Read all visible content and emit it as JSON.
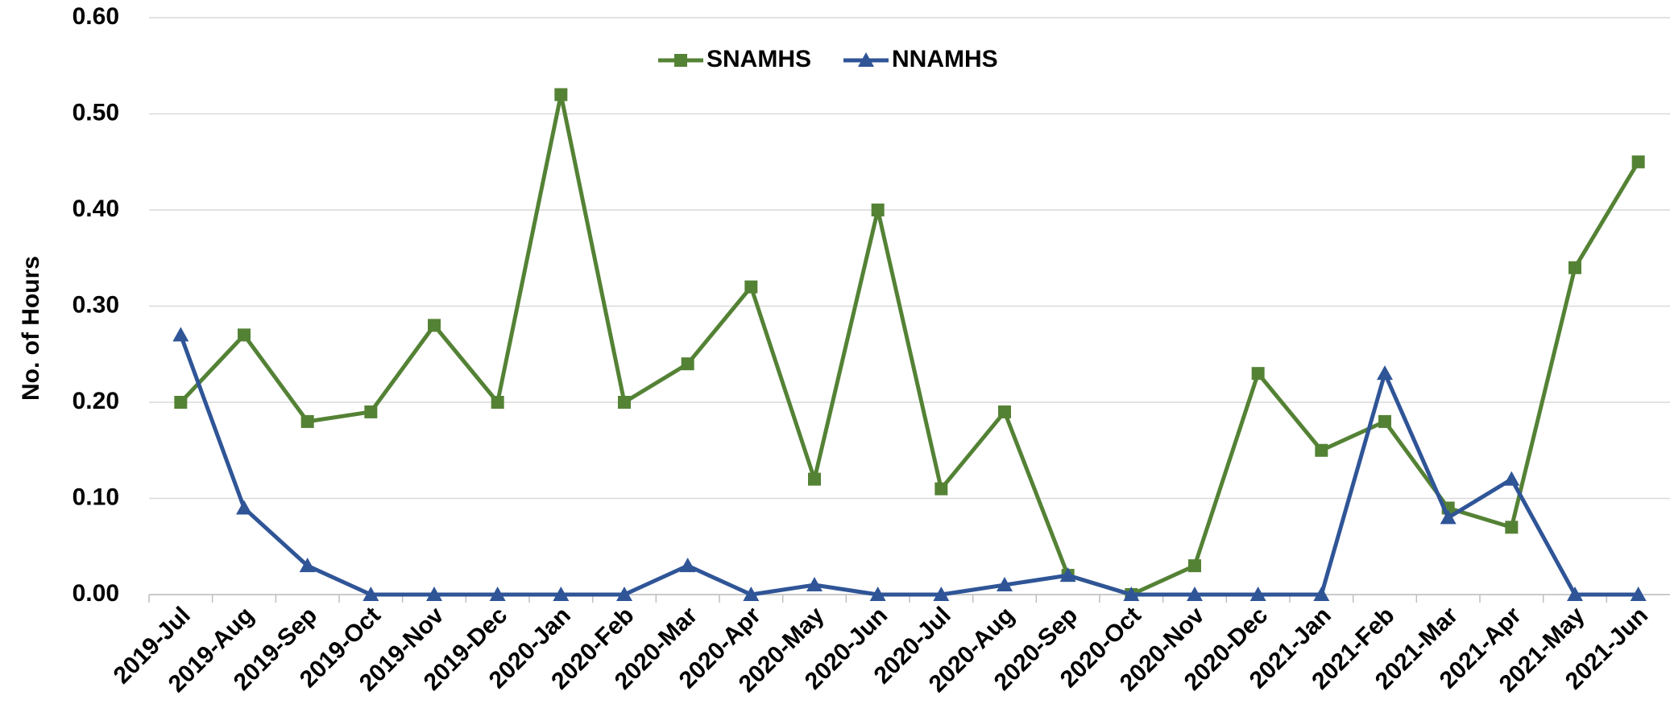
{
  "chart_data": {
    "type": "line",
    "y_label": "No. of Hours",
    "categories": [
      "2019-Jul",
      "2019-Aug",
      "2019-Sep",
      "2019-Oct",
      "2019-Nov",
      "2019-Dec",
      "2020-Jan",
      "2020-Feb",
      "2020-Mar",
      "2020-Apr",
      "2020-May",
      "2020-Jun",
      "2020-Jul",
      "2020-Aug",
      "2020-Sep",
      "2020-Oct",
      "2020-Nov",
      "2020-Dec",
      "2021-Jan",
      "2021-Feb",
      "2021-Mar",
      "2021-Apr",
      "2021-May",
      "2021-Jun"
    ],
    "series": [
      {
        "name": "SNAMHS",
        "color": "#548235",
        "marker": "square",
        "values": [
          0.2,
          0.27,
          0.18,
          0.19,
          0.28,
          0.2,
          0.52,
          0.2,
          0.24,
          0.32,
          0.12,
          0.4,
          0.11,
          0.19,
          0.02,
          0.0,
          0.03,
          0.23,
          0.15,
          0.18,
          0.09,
          0.07,
          0.34,
          0.45
        ]
      },
      {
        "name": "NNAMHS",
        "color": "#2f5597",
        "marker": "triangle",
        "values": [
          0.27,
          0.09,
          0.03,
          0,
          0,
          0,
          0,
          0,
          0.03,
          0,
          0.01,
          0,
          0,
          0.01,
          0.02,
          0,
          0,
          0,
          0,
          0.23,
          0.08,
          0.12,
          0,
          0
        ]
      }
    ],
    "ylim": [
      0,
      0.6
    ],
    "yticks": [
      {
        "value": 0,
        "label": "0.00"
      },
      {
        "value": 0.1,
        "label": "0.10"
      },
      {
        "value": 0.2,
        "label": "0.20"
      },
      {
        "value": 0.3,
        "label": "0.30"
      },
      {
        "value": 0.4,
        "label": "0.40"
      },
      {
        "value": 0.5,
        "label": "0.50"
      },
      {
        "value": 0.6,
        "label": "0.60"
      }
    ],
    "grid": true,
    "legend": "top"
  }
}
